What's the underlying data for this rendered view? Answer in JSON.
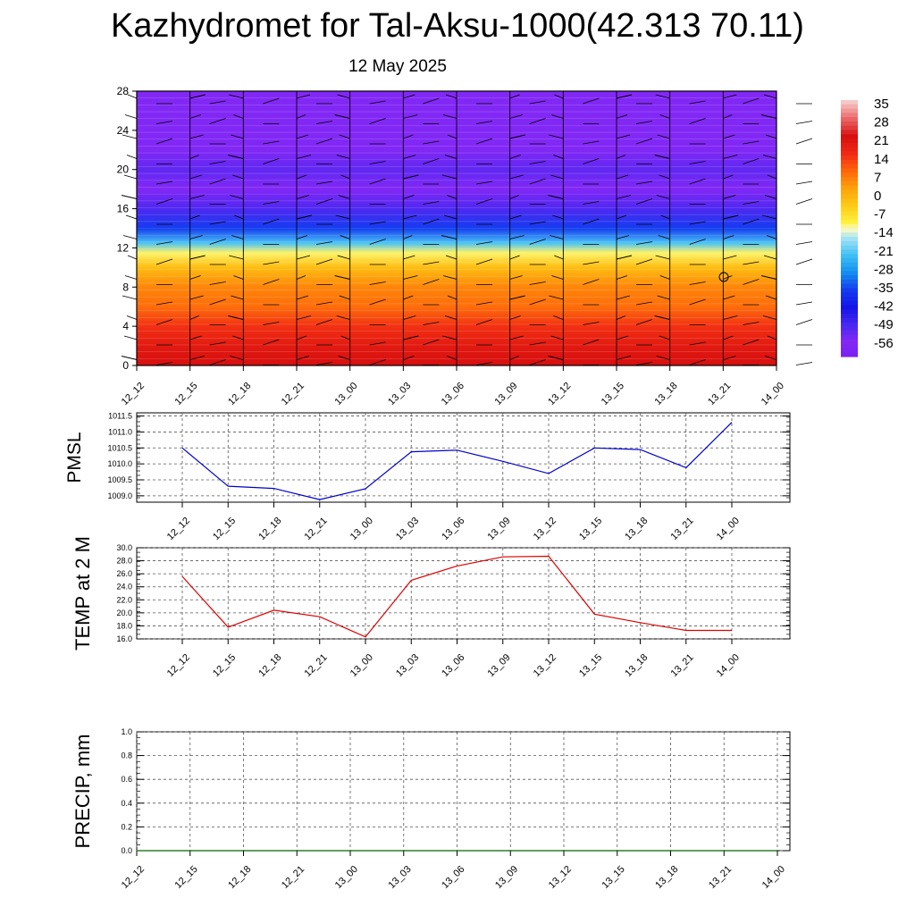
{
  "header": {
    "title": "Kazhydromet for Tal-Aksu-1000(42.313 70.11)",
    "date": "12 May 2025"
  },
  "time_labels": [
    "12_12",
    "12_15",
    "12_18",
    "12_21",
    "13_00",
    "13_03",
    "13_06",
    "13_09",
    "13_12",
    "13_15",
    "13_18",
    "13_21",
    "14_00"
  ],
  "colorbar": {
    "labels": [
      "35",
      "28",
      "21",
      "14",
      "7",
      "0",
      "-7",
      "-14",
      "-21",
      "-28",
      "-35",
      "-42",
      "-49",
      "-56"
    ]
  },
  "colors": {
    "pmsl_line": "#0000cc",
    "temp_line": "#dd0000",
    "precip_line": "#006600",
    "grid": "#555555"
  },
  "chart_data": [
    {
      "type": "heatmap",
      "name": "cross-section",
      "x": [
        "12_12",
        "12_15",
        "12_18",
        "12_21",
        "13_00",
        "13_03",
        "13_06",
        "13_09",
        "13_12",
        "13_15",
        "13_18",
        "13_21",
        "14_00"
      ],
      "y_ticks": [
        "0",
        "4",
        "8",
        "12",
        "16",
        "20",
        "24",
        "28"
      ],
      "ylim": [
        0,
        28
      ],
      "color_levels": [
        35,
        28,
        21,
        14,
        7,
        0,
        -7,
        -14,
        -21,
        -28,
        -35,
        -42,
        -49,
        -56
      ],
      "values_by_level": [
        28,
        25,
        20,
        13,
        10,
        2,
        -8,
        -20,
        -35,
        -50,
        -56,
        -52,
        -56,
        -56,
        -56
      ],
      "levels_y": [
        0,
        2,
        4,
        6,
        8,
        10,
        11.5,
        12.5,
        14,
        16,
        18,
        20,
        22,
        24,
        28
      ],
      "wind_barbs": true
    },
    {
      "type": "line",
      "name": "pmsl",
      "ylabel": "PMSL",
      "x": [
        "12_12",
        "12_15",
        "12_18",
        "12_21",
        "13_00",
        "13_03",
        "13_06",
        "13_09",
        "13_12",
        "13_15",
        "13_18",
        "13_21",
        "14_00"
      ],
      "values": [
        1010.5,
        1009.3,
        1009.23,
        1008.88,
        1009.22,
        1010.38,
        1010.43,
        1010.08,
        1009.7,
        1010.5,
        1010.45,
        1009.88,
        1011.3
      ],
      "ylim": [
        1008.8,
        1011.6
      ],
      "y_ticks": [
        "1009.0",
        "1009.5",
        "1010.0",
        "1010.5",
        "1011.0",
        "1011.5"
      ],
      "y_tick_values": [
        1009.0,
        1009.5,
        1010.0,
        1010.5,
        1011.0,
        1011.5
      ],
      "grid": true
    },
    {
      "type": "line",
      "name": "temp",
      "ylabel": "TEMP at 2 M",
      "x": [
        "12_12",
        "12_15",
        "12_18",
        "12_21",
        "13_00",
        "13_03",
        "13_06",
        "13_09",
        "13_12",
        "13_15",
        "13_18",
        "13_21",
        "14_00"
      ],
      "values": [
        25.6,
        17.8,
        20.4,
        19.4,
        16.3,
        25.0,
        27.2,
        28.6,
        28.7,
        19.8,
        18.5,
        17.3,
        17.3
      ],
      "ylim": [
        16.0,
        30.0
      ],
      "y_ticks": [
        "16.0",
        "18.0",
        "20.0",
        "22.0",
        "24.0",
        "26.0",
        "28.0",
        "30.0"
      ],
      "y_tick_values": [
        16,
        18,
        20,
        22,
        24,
        26,
        28,
        30
      ],
      "grid": true
    },
    {
      "type": "line",
      "name": "precip",
      "ylabel": "PRECIP, mm",
      "x": [
        "12_12",
        "12_15",
        "12_18",
        "12_21",
        "13_00",
        "13_03",
        "13_06",
        "13_09",
        "13_12",
        "13_15",
        "13_18",
        "13_21",
        "14_00"
      ],
      "values": [
        0,
        0,
        0,
        0,
        0,
        0,
        0,
        0,
        0,
        0,
        0,
        0,
        0
      ],
      "ylim": [
        0.0,
        1.0
      ],
      "y_ticks": [
        "0.0",
        "0.2",
        "0.4",
        "0.6",
        "0.8",
        "1.0"
      ],
      "y_tick_values": [
        0,
        0.2,
        0.4,
        0.6,
        0.8,
        1.0
      ],
      "grid": true
    }
  ]
}
